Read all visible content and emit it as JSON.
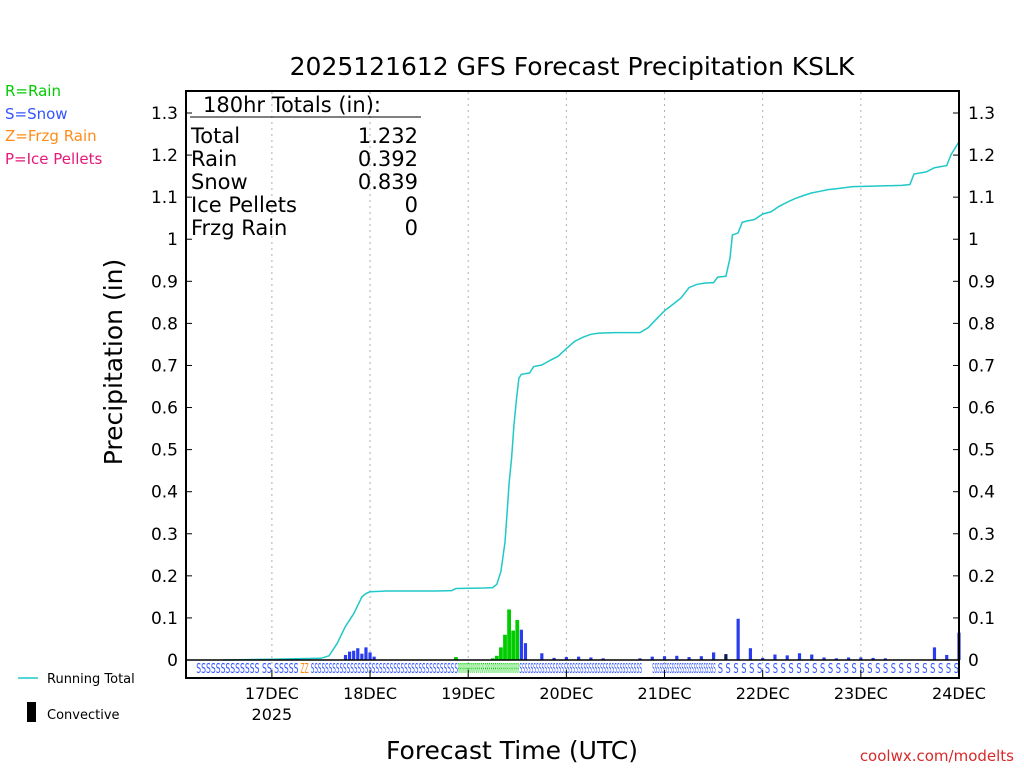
{
  "chart_data": {
    "type": "bar",
    "title": "2025121612 GFS Forecast Precipitation KSLK",
    "xlabel": "Forecast Time (UTC)",
    "ylabel": "Precipitation (in)",
    "ylim": [
      0,
      1.3
    ],
    "yticks": [
      "0",
      "0.1",
      "0.2",
      "0.3",
      "0.4",
      "0.5",
      "0.6",
      "0.7",
      "0.8",
      "0.9",
      "1",
      "1.1",
      "1.2",
      "1.3"
    ],
    "xlim_hours": [
      -9,
      180
    ],
    "day_ticks": [
      {
        "label": "17DEC",
        "hour": 12,
        "sub": "2025"
      },
      {
        "label": "18DEC",
        "hour": 36
      },
      {
        "label": "19DEC",
        "hour": 60
      },
      {
        "label": "20DEC",
        "hour": 84
      },
      {
        "label": "21DEC",
        "hour": 108
      },
      {
        "label": "22DEC",
        "hour": 132
      },
      {
        "label": "23DEC",
        "hour": 156
      },
      {
        "label": "24DEC",
        "hour": 180
      }
    ],
    "legend": [
      {
        "label": "R=Rain",
        "color": "#00cc00"
      },
      {
        "label": "S=Snow",
        "color": "#3355ff"
      },
      {
        "label": "Z=Frzg Rain",
        "color": "#ff8c1a"
      },
      {
        "label": "P=Ice Pellets",
        "color": "#e6197a"
      }
    ],
    "legend_bottom": [
      {
        "label": "Running Total",
        "color": "#20c8c8",
        "kind": "line"
      },
      {
        "label": "Convective",
        "color": "#000000",
        "kind": "bar"
      }
    ],
    "totals": {
      "header": "180hr Totals (in):",
      "rows": [
        {
          "name": "Total",
          "value": "1.232"
        },
        {
          "name": "Rain",
          "value": "0.392"
        },
        {
          "name": "Snow",
          "value": "0.839"
        },
        {
          "name": "Ice Pellets",
          "value": "0"
        },
        {
          "name": "Frzg Rain",
          "value": "0"
        }
      ]
    },
    "running_total": {
      "color": "#20c8c8",
      "points": [
        [
          0,
          0
        ],
        [
          12,
          0.002
        ],
        [
          24,
          0.004
        ],
        [
          26,
          0.01
        ],
        [
          28,
          0.04
        ],
        [
          30,
          0.08
        ],
        [
          32,
          0.11
        ],
        [
          33,
          0.13
        ],
        [
          34,
          0.15
        ],
        [
          35,
          0.158
        ],
        [
          36,
          0.162
        ],
        [
          40,
          0.164
        ],
        [
          52,
          0.164
        ],
        [
          56,
          0.165
        ],
        [
          57,
          0.17
        ],
        [
          64,
          0.171
        ],
        [
          66,
          0.172
        ],
        [
          67,
          0.18
        ],
        [
          68,
          0.21
        ],
        [
          69,
          0.28
        ],
        [
          69.5,
          0.35
        ],
        [
          70,
          0.42
        ],
        [
          70.6,
          0.48
        ],
        [
          71.2,
          0.56
        ],
        [
          71.8,
          0.62
        ],
        [
          72.4,
          0.67
        ],
        [
          73,
          0.679
        ],
        [
          75,
          0.682
        ],
        [
          76,
          0.697
        ],
        [
          78,
          0.701
        ],
        [
          80,
          0.712
        ],
        [
          82,
          0.722
        ],
        [
          84,
          0.74
        ],
        [
          86,
          0.757
        ],
        [
          88,
          0.767
        ],
        [
          90,
          0.774
        ],
        [
          92,
          0.777
        ],
        [
          96,
          0.778
        ],
        [
          100,
          0.778
        ],
        [
          102,
          0.778
        ],
        [
          104,
          0.79
        ],
        [
          106,
          0.81
        ],
        [
          108,
          0.83
        ],
        [
          110,
          0.845
        ],
        [
          112,
          0.86
        ],
        [
          114,
          0.885
        ],
        [
          116,
          0.893
        ],
        [
          118,
          0.896
        ],
        [
          120,
          0.897
        ],
        [
          121,
          0.91
        ],
        [
          123,
          0.912
        ],
        [
          124,
          0.955
        ],
        [
          124.6,
          1.01
        ],
        [
          126,
          1.015
        ],
        [
          127,
          1.04
        ],
        [
          128,
          1.043
        ],
        [
          130,
          1.047
        ],
        [
          132,
          1.06
        ],
        [
          134,
          1.065
        ],
        [
          136,
          1.078
        ],
        [
          138,
          1.088
        ],
        [
          140,
          1.097
        ],
        [
          142,
          1.104
        ],
        [
          144,
          1.11
        ],
        [
          146,
          1.114
        ],
        [
          148,
          1.118
        ],
        [
          150,
          1.12
        ],
        [
          154,
          1.125
        ],
        [
          158,
          1.126
        ],
        [
          162,
          1.127
        ],
        [
          166,
          1.128
        ],
        [
          168,
          1.13
        ],
        [
          169,
          1.155
        ],
        [
          172,
          1.16
        ],
        [
          174,
          1.17
        ],
        [
          177,
          1.175
        ],
        [
          178,
          1.2
        ],
        [
          180,
          1.232
        ]
      ]
    },
    "bars": [
      {
        "x": 30,
        "value": 0.012,
        "type": "S"
      },
      {
        "x": 31,
        "value": 0.02,
        "type": "S"
      },
      {
        "x": 32,
        "value": 0.022,
        "type": "S"
      },
      {
        "x": 33,
        "value": 0.028,
        "type": "S"
      },
      {
        "x": 34,
        "value": 0.015,
        "type": "S"
      },
      {
        "x": 35,
        "value": 0.03,
        "type": "S"
      },
      {
        "x": 36,
        "value": 0.018,
        "type": "S"
      },
      {
        "x": 37,
        "value": 0.008,
        "type": "S"
      },
      {
        "x": 57,
        "value": 0.007,
        "type": "R"
      },
      {
        "x": 66,
        "value": 0.004,
        "type": "R"
      },
      {
        "x": 67,
        "value": 0.01,
        "type": "R"
      },
      {
        "x": 68,
        "value": 0.03,
        "type": "R"
      },
      {
        "x": 69,
        "value": 0.06,
        "type": "R"
      },
      {
        "x": 70,
        "value": 0.12,
        "type": "R"
      },
      {
        "x": 71,
        "value": 0.07,
        "type": "R"
      },
      {
        "x": 72,
        "value": 0.095,
        "type": "R"
      },
      {
        "x": 73,
        "value": 0.072,
        "type": "S"
      },
      {
        "x": 74,
        "value": 0.04,
        "type": "S"
      },
      {
        "x": 78,
        "value": 0.016,
        "type": "S"
      },
      {
        "x": 81,
        "value": 0.005,
        "type": "S"
      },
      {
        "x": 84,
        "value": 0.007,
        "type": "S"
      },
      {
        "x": 87,
        "value": 0.008,
        "type": "S"
      },
      {
        "x": 90,
        "value": 0.006,
        "type": "S"
      },
      {
        "x": 93,
        "value": 0.004,
        "type": "S"
      },
      {
        "x": 102,
        "value": 0.004,
        "type": "S"
      },
      {
        "x": 105,
        "value": 0.008,
        "type": "S"
      },
      {
        "x": 108,
        "value": 0.009,
        "type": "S"
      },
      {
        "x": 111,
        "value": 0.01,
        "type": "S"
      },
      {
        "x": 114,
        "value": 0.007,
        "type": "S"
      },
      {
        "x": 117,
        "value": 0.009,
        "type": "S"
      },
      {
        "x": 120,
        "value": 0.018,
        "type": "S"
      },
      {
        "x": 123,
        "value": 0.014,
        "type": "C"
      },
      {
        "x": 126,
        "value": 0.098,
        "type": "S"
      },
      {
        "x": 129,
        "value": 0.028,
        "type": "S"
      },
      {
        "x": 132,
        "value": 0.005,
        "type": "S"
      },
      {
        "x": 135,
        "value": 0.013,
        "type": "S"
      },
      {
        "x": 138,
        "value": 0.011,
        "type": "S"
      },
      {
        "x": 141,
        "value": 0.016,
        "type": "S"
      },
      {
        "x": 144,
        "value": 0.013,
        "type": "S"
      },
      {
        "x": 147,
        "value": 0.006,
        "type": "S"
      },
      {
        "x": 150,
        "value": 0.004,
        "type": "S"
      },
      {
        "x": 153,
        "value": 0.006,
        "type": "S"
      },
      {
        "x": 156,
        "value": 0.006,
        "type": "S"
      },
      {
        "x": 159,
        "value": 0.005,
        "type": "S"
      },
      {
        "x": 162,
        "value": 0.004,
        "type": "S"
      },
      {
        "x": 174,
        "value": 0.03,
        "type": "S"
      },
      {
        "x": 177,
        "value": 0.012,
        "type": "S"
      },
      {
        "x": 180,
        "value": 0.065,
        "type": "S"
      }
    ],
    "type_rows": [
      {
        "text": "SSSSSSSSSSSSS SS SSSSS",
        "color": "#3355ff",
        "h0": -6.5,
        "h1": 18.5
      },
      {
        "text": "ZZ",
        "color": "#ff8c1a",
        "h0": 19,
        "h1": 21
      },
      {
        "text": "SSSSSSSSSSSSSSSSSSSSSSSSSSSSSSSSSSSSSSSSS",
        "color": "#3355ff",
        "h0": 21.5,
        "h1": 57.5
      },
      {
        "text": "RRRRRRRRRRRRRRRRRRRRRRRRRRRRRR",
        "color": "#00cc00",
        "h0": 57.5,
        "h1": 72.5
      },
      {
        "text": "SSSSSSSSSSSSSSSSSSSSSSSSSSSSSSSSSSSSSSSSSSSS",
        "color": "#3355ff",
        "h0": 72.5,
        "h1": 102.5
      },
      {
        "text": "SSSSSSSSSSSSSSSSSSSSSSSSSS",
        "color": "#3355ff",
        "h0": 105,
        "h1": 120.5
      },
      {
        "text": "S S S S S S S S S S S S S S S S S S S S S S S S S S S S S S S",
        "color": "#3355ff",
        "h0": 121,
        "h1": 180
      }
    ]
  },
  "footer": {
    "credit": "coolwx.com/modelts",
    "credit_color": "#d82a2a"
  }
}
